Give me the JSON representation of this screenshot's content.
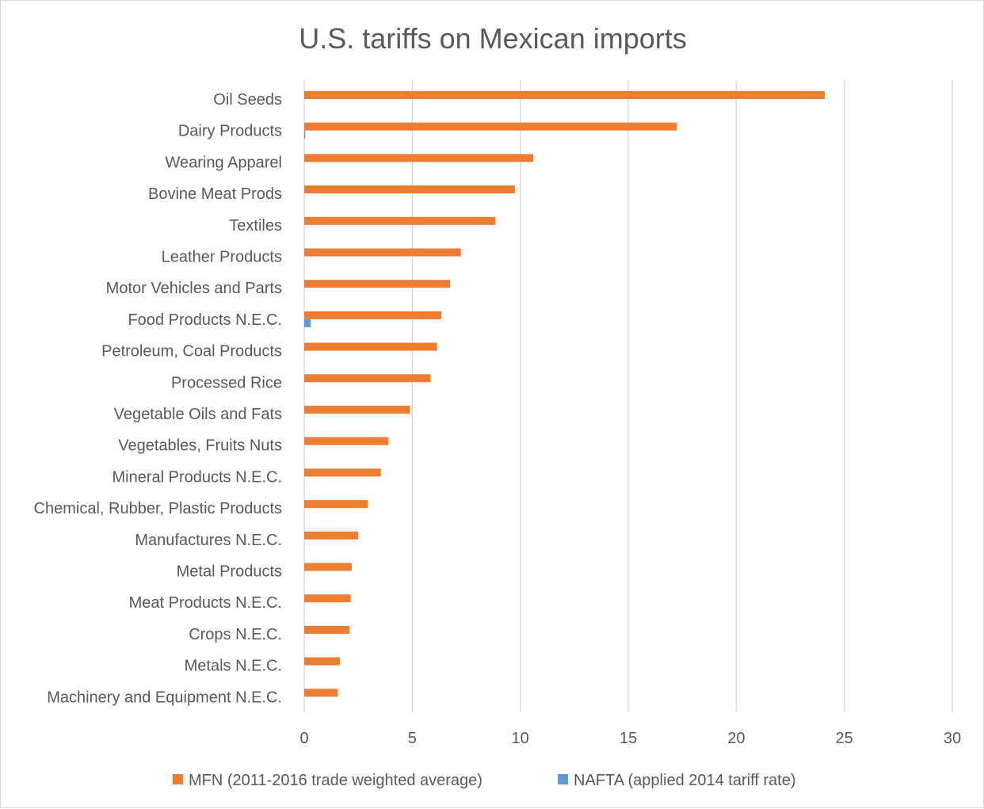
{
  "chart_data": {
    "type": "bar",
    "orientation": "horizontal",
    "title": "U.S. tariffs on Mexican imports",
    "categories": [
      "Oil Seeds",
      "Dairy Products",
      "Wearing Apparel",
      "Bovine Meat Prods",
      "Textiles",
      "Leather Products",
      "Motor Vehicles and Parts",
      "Food Products N.E.C.",
      "Petroleum, Coal Products",
      "Processed Rice",
      "Vegetable Oils and Fats",
      "Vegetables, Fruits Nuts",
      "Mineral Products N.E.C.",
      "Chemical, Rubber, Plastic Products",
      "Manufactures N.E.C.",
      "Metal Products",
      "Meat Products N.E.C.",
      "Crops N.E.C.",
      "Metals N.E.C.",
      "Machinery and Equipment N.E.C."
    ],
    "series": [
      {
        "name": "MFN (2011-2016 trade weighted average)",
        "color": "#ed7d31",
        "values": [
          24.1,
          17.25,
          10.6,
          9.75,
          8.85,
          7.25,
          6.75,
          6.35,
          6.15,
          5.85,
          4.9,
          3.9,
          3.55,
          2.95,
          2.5,
          2.2,
          2.15,
          2.1,
          1.65,
          1.55
        ]
      },
      {
        "name": "NAFTA (applied 2014 tariff rate)",
        "color": "#5b9bd5",
        "values": [
          0,
          0.05,
          0,
          0,
          0,
          0,
          0,
          0.3,
          0,
          0,
          0,
          0,
          0,
          0,
          0,
          0,
          0,
          0,
          0,
          0
        ]
      }
    ],
    "xlim": [
      0,
      30
    ],
    "xticks": [
      0,
      5,
      10,
      15,
      20,
      25,
      30
    ],
    "xlabel": "",
    "ylabel": "",
    "grid": "vertical",
    "legend": "bottom"
  }
}
